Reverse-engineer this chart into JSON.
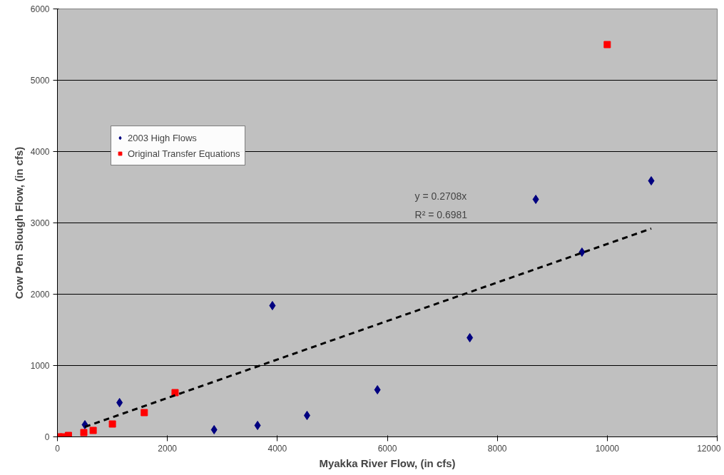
{
  "chart_data": {
    "type": "scatter",
    "xlabel": "Myakka River Flow, (in cfs)",
    "ylabel": "Cow Pen Slough Flow, (in cfs)",
    "xlim": [
      0,
      12000
    ],
    "ylim": [
      0,
      6000
    ],
    "xticks": [
      0,
      2000,
      4000,
      6000,
      8000,
      10000,
      12000
    ],
    "yticks": [
      0,
      1000,
      2000,
      3000,
      4000,
      5000,
      6000
    ],
    "grid": "y",
    "legend": "top left",
    "annotations": [
      "y = 0.2708x",
      "R² = 0.6981"
    ],
    "series": [
      {
        "name": "2003 High Flows",
        "color": "#000080",
        "marker": "diamond",
        "x": [
          500,
          1130,
          2850,
          3640,
          3910,
          4540,
          5820,
          7500,
          8700,
          9540,
          10800
        ],
        "values": [
          170,
          480,
          100,
          160,
          1840,
          300,
          660,
          1390,
          3330,
          2590,
          3590
        ]
      },
      {
        "name": "Original Transfer Equations",
        "color": "#ff0000",
        "marker": "square",
        "x": [
          30,
          100,
          200,
          480,
          650,
          1000,
          1580,
          2140,
          10000
        ],
        "values": [
          0,
          0,
          20,
          60,
          90,
          180,
          340,
          620,
          5500
        ]
      },
      {
        "type": "line",
        "color": "#000000",
        "line_style": "dashed",
        "x": [
          500,
          10800
        ],
        "values": [
          140,
          2920
        ]
      }
    ]
  }
}
